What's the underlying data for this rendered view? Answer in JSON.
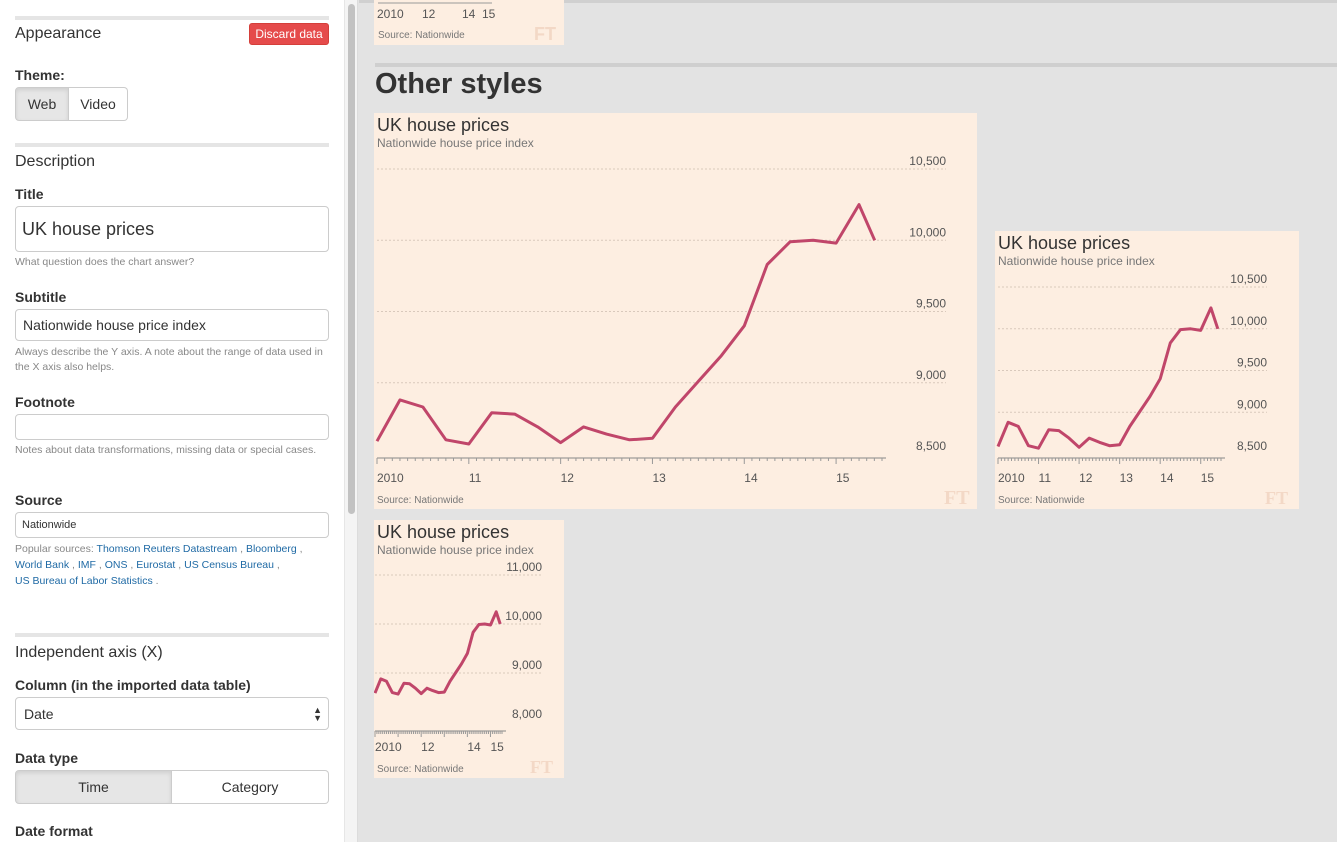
{
  "sidebar": {
    "appearance": {
      "title": "Appearance",
      "discard_label": "Discard data"
    },
    "theme": {
      "label": "Theme:",
      "options": [
        "Web",
        "Video"
      ],
      "selected": "Web"
    },
    "description": {
      "title": "Description",
      "title_label": "Title",
      "title_value": "UK house prices",
      "title_help": "What question does the chart answer?",
      "subtitle_label": "Subtitle",
      "subtitle_value": "Nationwide house price index",
      "subtitle_help": "Always describe the Y axis. A note about the range of data used in the X axis also helps.",
      "footnote_label": "Footnote",
      "footnote_value": "",
      "footnote_help": "Notes about data transformations, missing data or special cases.",
      "source_label": "Source",
      "source_value": "Nationwide",
      "popular_label": "Popular sources:",
      "popular_sources": [
        "Thomson Reuters Datastream",
        "Bloomberg",
        "World Bank",
        "IMF",
        "ONS",
        "Eurostat",
        "US Census Bureau",
        "US Bureau of Labor Statistics"
      ]
    },
    "x_axis": {
      "title": "Independent axis (X)",
      "column_label": "Column (in the imported data table)",
      "column_value": "Date",
      "data_type_label": "Data type",
      "data_type_options": [
        "Time",
        "Category"
      ],
      "data_type_selected": "Time",
      "date_format_label": "Date format"
    }
  },
  "main": {
    "heading": "Other styles",
    "top_card": {
      "ticks": [
        "2010",
        "12",
        "14",
        "15"
      ],
      "source": "Source: Nationwide",
      "logo": "FT"
    }
  },
  "chart_data": [
    {
      "type": "line",
      "title": "UK house prices",
      "subtitle": "Nationwide house price index",
      "source": "Source: Nationwide",
      "logo": "FT",
      "series_color": "#c0466a",
      "x": [
        2010.0,
        2010.25,
        2010.5,
        2010.75,
        2011.0,
        2011.25,
        2011.5,
        2011.75,
        2012.0,
        2012.25,
        2012.5,
        2012.75,
        2013.0,
        2013.25,
        2013.5,
        2013.75,
        2014.0,
        2014.25,
        2014.5,
        2014.75,
        2015.0,
        2015.25,
        2015.42
      ],
      "values": [
        8590,
        8880,
        8830,
        8600,
        8570,
        8790,
        8780,
        8690,
        8580,
        8690,
        8640,
        8600,
        8610,
        8830,
        9010,
        9190,
        9400,
        9830,
        9990,
        10000,
        9980,
        10250,
        10000
      ],
      "ylim": [
        8500,
        10500
      ],
      "yticks": [
        8500,
        9000,
        9500,
        10000,
        10500
      ],
      "ytick_labels": [
        "8,500",
        "9,000",
        "9,500",
        "10,000",
        "10,500"
      ],
      "xticks": [
        2010,
        2011,
        2012,
        2013,
        2014,
        2015
      ],
      "xtick_labels": [
        "2010",
        "11",
        "12",
        "13",
        "14",
        "15"
      ]
    },
    {
      "type": "line",
      "title": "UK house prices",
      "subtitle": "Nationwide house price index",
      "source": "Source: Nationwide",
      "logo": "FT",
      "series_color": "#c0466a",
      "ylim": [
        8500,
        10500
      ],
      "yticks": [
        8500,
        9000,
        9500,
        10000,
        10500
      ],
      "ytick_labels": [
        "8,500",
        "9,000",
        "9,500",
        "10,000",
        "10,500"
      ],
      "xticks": [
        2010,
        2011,
        2012,
        2013,
        2014,
        2015
      ],
      "xtick_labels": [
        "2010",
        "11",
        "12",
        "13",
        "14",
        "15"
      ]
    },
    {
      "type": "line",
      "title": "UK house prices",
      "subtitle": "Nationwide house price index",
      "source": "Source: Nationwide",
      "logo": "FT",
      "series_color": "#c0466a",
      "ylim": [
        8000,
        11000
      ],
      "yticks": [
        8000,
        9000,
        10000,
        11000
      ],
      "ytick_labels": [
        "8,000",
        "9,000",
        "10,000",
        "11,000"
      ],
      "xticks": [
        2010,
        2012,
        2014,
        2015
      ],
      "xtick_labels": [
        "2010",
        "12",
        "14",
        "15"
      ]
    }
  ]
}
